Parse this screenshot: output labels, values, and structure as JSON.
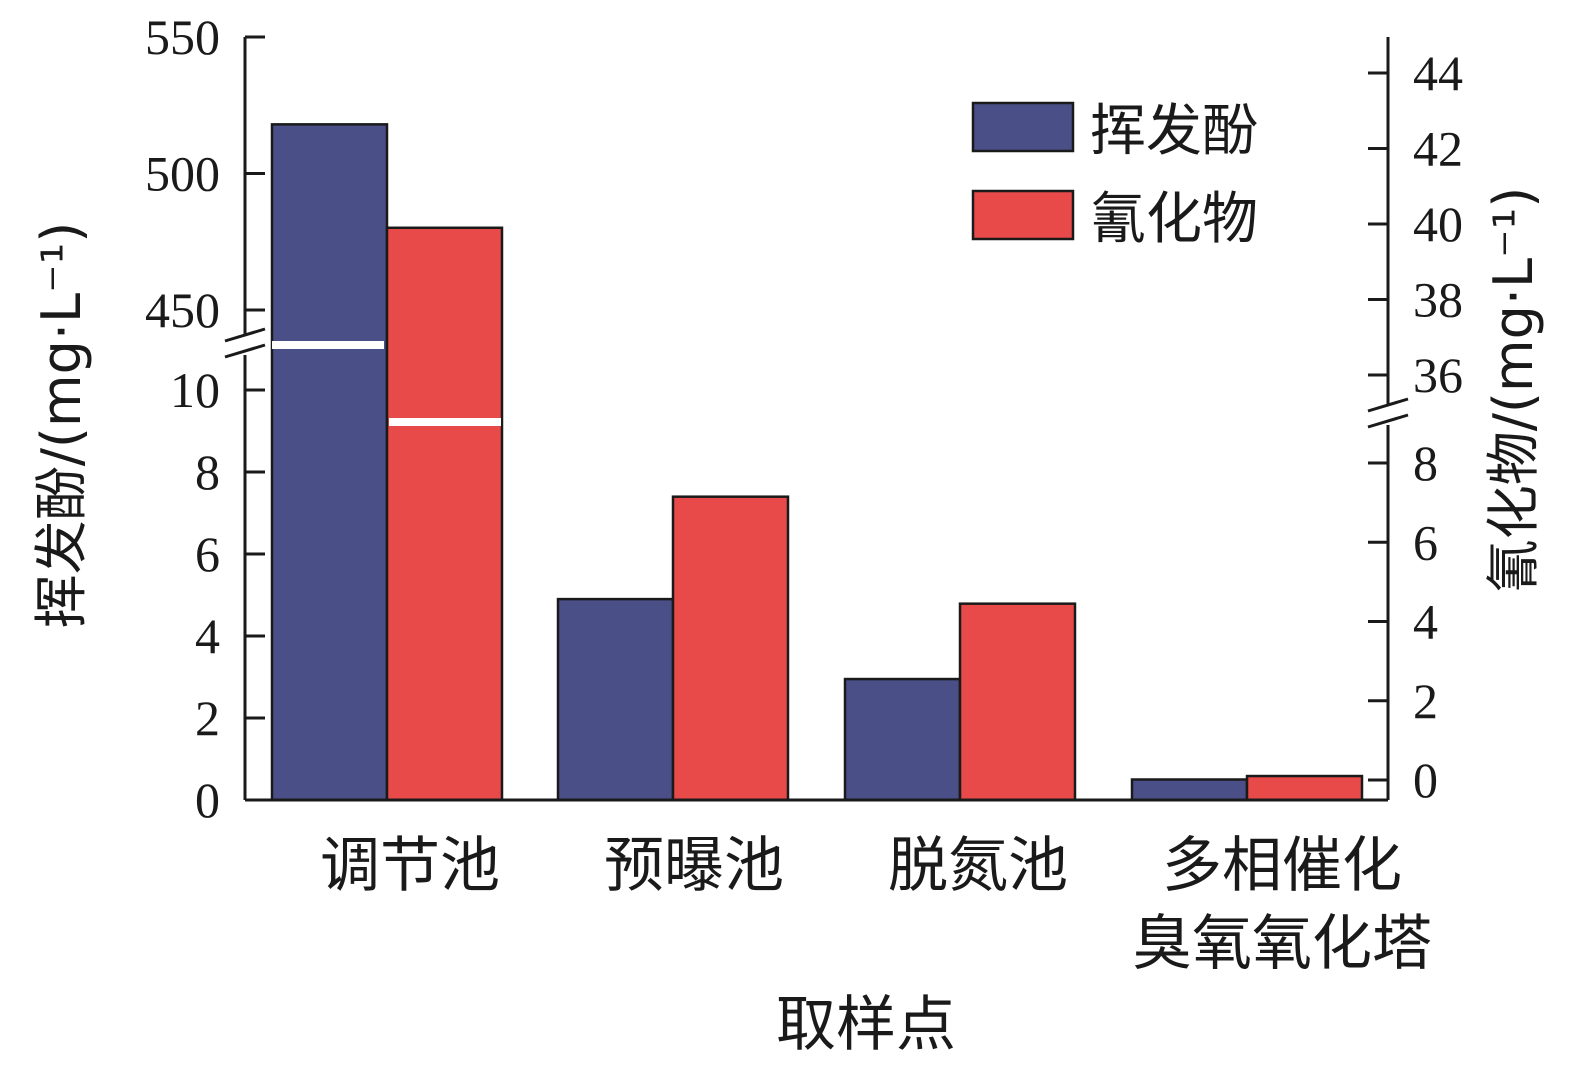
{
  "chart_data": {
    "type": "bar",
    "xlabel": "取样点",
    "ylabel_left": "挥发酚/(mg·L⁻¹)",
    "ylabel_right": "氰化物/(mg·L⁻¹)",
    "categories": [
      [
        "调节池"
      ],
      [
        "预曝池"
      ],
      [
        "脱氮池"
      ],
      [
        "多相催化",
        "臭氧氧化塔"
      ]
    ],
    "series": [
      {
        "name": "挥发酚",
        "axis": "left",
        "color": "#4a4f87",
        "values": [
          518,
          4.9,
          2.95,
          0.5
        ]
      },
      {
        "name": "氰化物",
        "axis": "right",
        "color": "#e84a4a",
        "values": [
          39.9,
          7.15,
          4.45,
          0.1
        ]
      }
    ],
    "left_axis": {
      "broken": true,
      "lower_range": [
        0,
        11
      ],
      "upper_range": [
        440,
        550
      ],
      "lower_ticks": [
        "0",
        "2",
        "4",
        "6",
        "8",
        "10"
      ],
      "upper_ticks": [
        "450",
        "500",
        "550"
      ]
    },
    "right_axis": {
      "broken": true,
      "lower_range": [
        -0.5,
        9.2
      ],
      "upper_range": [
        35,
        45
      ],
      "lower_ticks": [
        "0",
        "2",
        "4",
        "6",
        "8"
      ],
      "upper_ticks": [
        "36",
        "38",
        "40",
        "42",
        "44"
      ]
    },
    "legend_position": "top-right",
    "grid": false
  }
}
